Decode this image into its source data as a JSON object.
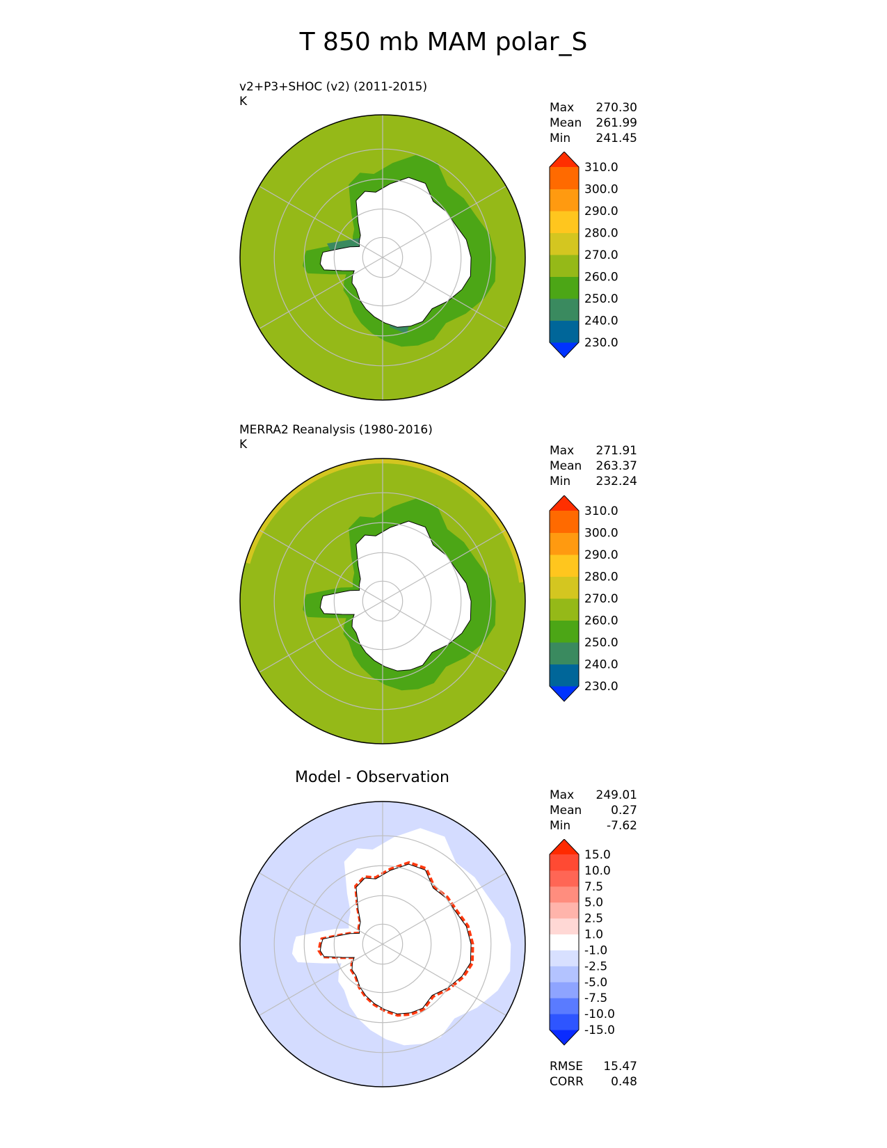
{
  "figure": {
    "title": "T 850 mb MAM polar_S"
  },
  "panels": [
    {
      "id": "model",
      "title_line1": "v2+P3+SHOC (v2) (2011-2015)",
      "title_line2": "K",
      "stats": [
        {
          "label": "Max",
          "value": "270.30"
        },
        {
          "label": "Mean",
          "value": "261.99"
        },
        {
          "label": "Min",
          "value": "241.45"
        }
      ],
      "colorbar": {
        "colors": [
          "#0033ff",
          "#006699",
          "#3a8a5f",
          "#4ca616",
          "#95b918",
          "#d4c620",
          "#ffc61e",
          "#ff9a10",
          "#ff6a00",
          "#ff2f00"
        ],
        "labels": [
          "230.0",
          "240.0",
          "250.0",
          "260.0",
          "270.0",
          "280.0",
          "290.0",
          "300.0",
          "310.0"
        ]
      }
    },
    {
      "id": "obs",
      "title_line1": "MERRA2 Reanalysis (1980-2016)",
      "title_line2": "K",
      "stats": [
        {
          "label": "Max",
          "value": "271.91"
        },
        {
          "label": "Mean",
          "value": "263.37"
        },
        {
          "label": "Min",
          "value": "232.24"
        }
      ],
      "colorbar": {
        "colors": [
          "#0033ff",
          "#006699",
          "#3a8a5f",
          "#4ca616",
          "#95b918",
          "#d4c620",
          "#ffc61e",
          "#ff9a10",
          "#ff6a00",
          "#ff2f00"
        ],
        "labels": [
          "230.0",
          "240.0",
          "250.0",
          "260.0",
          "270.0",
          "280.0",
          "290.0",
          "300.0",
          "310.0"
        ]
      }
    },
    {
      "id": "diff",
      "title": "Model - Observation",
      "stats": [
        {
          "label": "Max",
          "value": "249.01"
        },
        {
          "label": "Mean",
          "value": "0.27"
        },
        {
          "label": "Min",
          "value": "-7.62"
        }
      ],
      "metrics": [
        {
          "label": "RMSE",
          "value": "15.47"
        },
        {
          "label": "CORR",
          "value": "0.48"
        }
      ],
      "colorbar": {
        "colors": [
          "#0a2bff",
          "#2e55ff",
          "#5a7bff",
          "#8ea4ff",
          "#b3c3ff",
          "#d8e0ff",
          "#ffffff",
          "#ffd8d5",
          "#ffb4ab",
          "#ff8d7e",
          "#ff6655",
          "#ff4a33",
          "#ff2a00"
        ],
        "labels": [
          "-15.0",
          "-10.0",
          "-7.5",
          "-5.0",
          "-2.5",
          "-1.0",
          "1.0",
          "2.5",
          "5.0",
          "7.5",
          "10.0",
          "15.0"
        ]
      }
    }
  ],
  "map_colors": {
    "field_model": "#95b918",
    "field_obs": "#95b918",
    "coastal_ring": "#4ca616",
    "cold_patch": "#3a8a5f",
    "warm_edge_obs": "#d4c620",
    "diff_ocean": "#d4dcff",
    "diff_coast_warm": "#ff3a10",
    "land_mask": "#ffffff",
    "grid": "#bdbdbd"
  }
}
